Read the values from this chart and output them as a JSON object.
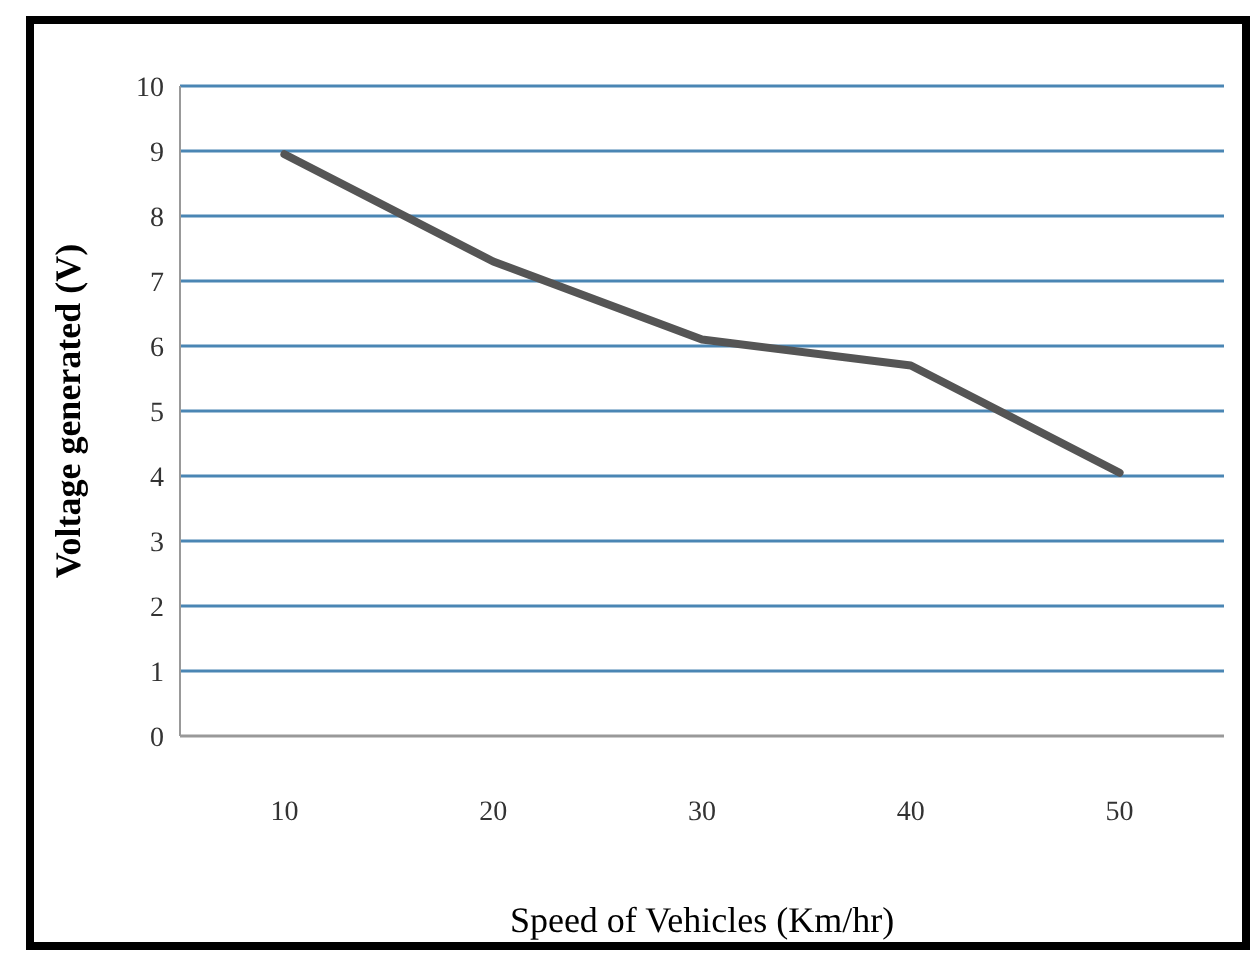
{
  "chart_data": {
    "type": "line",
    "xlabel": "Speed of Vehicles (Km/hr)",
    "ylabel": "Voltage generated (V)",
    "categories": [
      "10",
      "20",
      "30",
      "40",
      "50"
    ],
    "series": [
      {
        "color": "#555555",
        "values": [
          8.95,
          7.3,
          6.1,
          5.7,
          4.05
        ]
      }
    ],
    "ylim": [
      0,
      10
    ],
    "yticks": [
      0,
      1,
      2,
      3,
      4,
      5,
      6,
      7,
      8,
      9,
      10
    ],
    "grid": "y",
    "marker": "none",
    "line_style": "solid"
  }
}
